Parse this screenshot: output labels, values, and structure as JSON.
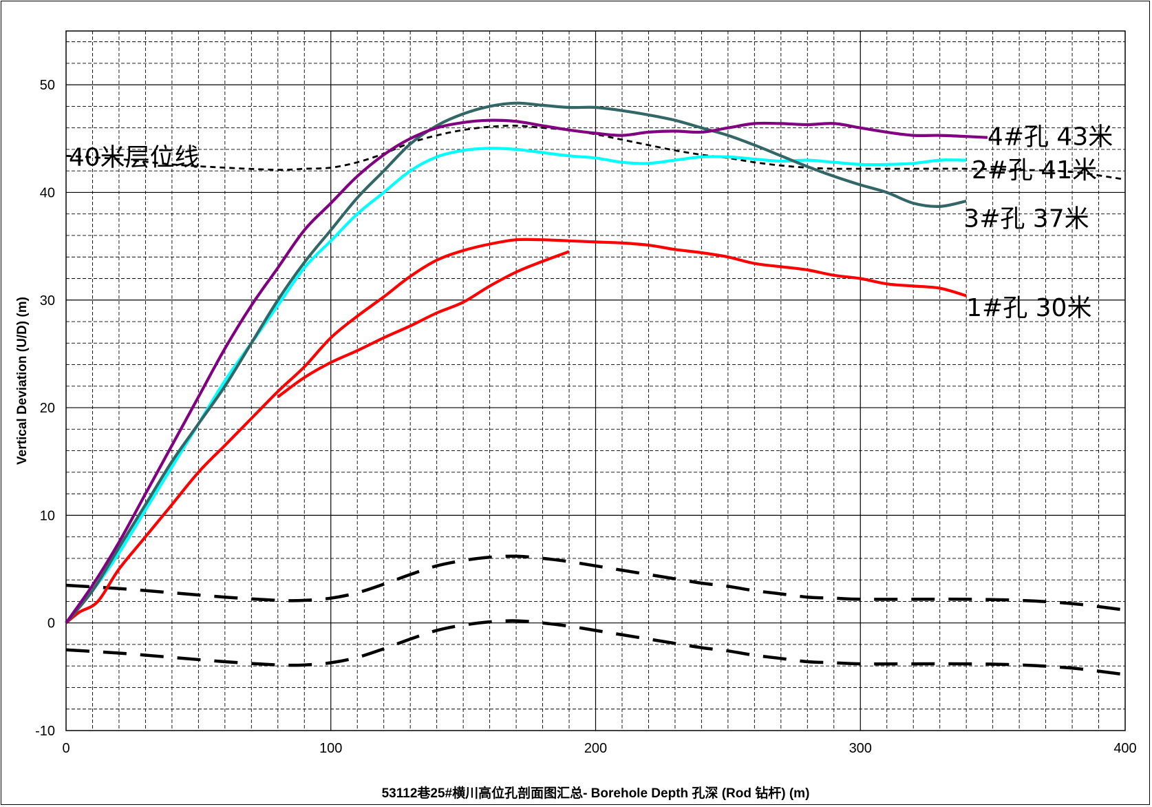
{
  "chart_data": {
    "type": "line",
    "title": "",
    "xlabel": "53112巷25#横川高位孔剖面图汇总- Borehole Depth 孔深 (Rod 钻杆) (m)",
    "ylabel": "Vertical Deviation (U/D) (m)",
    "xlim": [
      0,
      400
    ],
    "ylim": [
      -10,
      55
    ],
    "x_ticks": [
      "0",
      "100",
      "200",
      "300",
      "400"
    ],
    "y_ticks": [
      "-10",
      "0",
      "10",
      "20",
      "30",
      "40",
      "50"
    ],
    "grid": true,
    "legend": "none",
    "annotations": [
      {
        "text": "40米层位线",
        "x": 1,
        "y": 43.4
      },
      {
        "text": "4#孔  43米",
        "x": 348,
        "y": 45.3
      },
      {
        "text": "2#孔  41米",
        "x": 342,
        "y": 42.2
      },
      {
        "text": "3#孔  37米",
        "x": 339,
        "y": 37.7
      },
      {
        "text": "1#孔  30米",
        "x": 340,
        "y": 29.4
      }
    ],
    "series": [
      {
        "key": "hole4",
        "color": "#800080",
        "style": "solid",
        "points": [
          [
            0,
            0
          ],
          [
            10,
            3.5
          ],
          [
            20,
            7.5
          ],
          [
            30,
            12
          ],
          [
            40,
            16.5
          ],
          [
            50,
            21
          ],
          [
            60,
            25.5
          ],
          [
            70,
            29.5
          ],
          [
            80,
            33
          ],
          [
            90,
            36.5
          ],
          [
            100,
            39
          ],
          [
            110,
            41.5
          ],
          [
            120,
            43.5
          ],
          [
            130,
            45
          ],
          [
            140,
            46
          ],
          [
            150,
            46.5
          ],
          [
            160,
            46.7
          ],
          [
            170,
            46.6
          ],
          [
            180,
            46.2
          ],
          [
            190,
            45.8
          ],
          [
            200,
            45.5
          ],
          [
            210,
            45.3
          ],
          [
            220,
            45.6
          ],
          [
            230,
            45.7
          ],
          [
            240,
            45.6
          ],
          [
            250,
            46
          ],
          [
            260,
            46.4
          ],
          [
            270,
            46.4
          ],
          [
            280,
            46.3
          ],
          [
            290,
            46.4
          ],
          [
            300,
            46
          ],
          [
            310,
            45.6
          ],
          [
            320,
            45.3
          ],
          [
            330,
            45.3
          ],
          [
            340,
            45.2
          ],
          [
            348,
            45.1
          ]
        ]
      },
      {
        "key": "hole2",
        "color": "#00FFFF",
        "style": "solid",
        "points": [
          [
            0,
            0
          ],
          [
            10,
            3
          ],
          [
            20,
            6.5
          ],
          [
            30,
            10.5
          ],
          [
            40,
            14.5
          ],
          [
            50,
            18.5
          ],
          [
            60,
            22.5
          ],
          [
            70,
            26
          ],
          [
            80,
            29.5
          ],
          [
            90,
            33
          ],
          [
            100,
            35.5
          ],
          [
            110,
            38
          ],
          [
            120,
            40
          ],
          [
            130,
            42
          ],
          [
            140,
            43.3
          ],
          [
            150,
            43.9
          ],
          [
            160,
            44.1
          ],
          [
            170,
            44
          ],
          [
            180,
            43.7
          ],
          [
            190,
            43.4
          ],
          [
            200,
            43.2
          ],
          [
            210,
            42.8
          ],
          [
            220,
            42.7
          ],
          [
            230,
            43
          ],
          [
            240,
            43.3
          ],
          [
            250,
            43.3
          ],
          [
            260,
            43.1
          ],
          [
            270,
            42.9
          ],
          [
            280,
            43
          ],
          [
            290,
            42.8
          ],
          [
            300,
            42.6
          ],
          [
            310,
            42.6
          ],
          [
            320,
            42.7
          ],
          [
            330,
            43
          ],
          [
            340,
            43
          ]
        ]
      },
      {
        "key": "hole3",
        "color": "#336666",
        "style": "solid",
        "points": [
          [
            0,
            0
          ],
          [
            10,
            3
          ],
          [
            20,
            7
          ],
          [
            30,
            11
          ],
          [
            40,
            15
          ],
          [
            50,
            18.5
          ],
          [
            60,
            22
          ],
          [
            70,
            26
          ],
          [
            80,
            30
          ],
          [
            90,
            33.5
          ],
          [
            100,
            36.5
          ],
          [
            110,
            39.5
          ],
          [
            120,
            42
          ],
          [
            130,
            44.5
          ],
          [
            140,
            46.2
          ],
          [
            150,
            47.3
          ],
          [
            160,
            48
          ],
          [
            170,
            48.3
          ],
          [
            180,
            48.1
          ],
          [
            190,
            47.9
          ],
          [
            200,
            47.9
          ],
          [
            210,
            47.6
          ],
          [
            220,
            47.2
          ],
          [
            230,
            46.7
          ],
          [
            240,
            46
          ],
          [
            250,
            45.3
          ],
          [
            260,
            44.4
          ],
          [
            270,
            43.4
          ],
          [
            280,
            42.4
          ],
          [
            290,
            41.5
          ],
          [
            300,
            40.7
          ],
          [
            310,
            40
          ],
          [
            320,
            39
          ],
          [
            330,
            38.7
          ],
          [
            340,
            39.2
          ]
        ]
      },
      {
        "key": "hole1",
        "color": "#FF0000",
        "style": "solid",
        "points": [
          [
            0,
            0
          ],
          [
            5,
            1
          ],
          [
            12,
            2
          ],
          [
            20,
            5
          ],
          [
            30,
            8
          ],
          [
            40,
            11
          ],
          [
            50,
            14
          ],
          [
            60,
            16.5
          ],
          [
            70,
            19
          ],
          [
            80,
            21.5
          ],
          [
            90,
            23.8
          ],
          [
            100,
            26.5
          ],
          [
            110,
            28.5
          ],
          [
            120,
            30.3
          ],
          [
            130,
            32.2
          ],
          [
            140,
            33.7
          ],
          [
            150,
            34.6
          ],
          [
            160,
            35.2
          ],
          [
            170,
            35.6
          ],
          [
            180,
            35.6
          ],
          [
            190,
            35.5
          ],
          [
            200,
            35.4
          ],
          [
            210,
            35.3
          ],
          [
            220,
            35.1
          ],
          [
            230,
            34.7
          ],
          [
            240,
            34.4
          ],
          [
            250,
            34
          ],
          [
            260,
            33.4
          ],
          [
            270,
            33.1
          ],
          [
            280,
            32.8
          ],
          [
            290,
            32.3
          ],
          [
            300,
            32
          ],
          [
            310,
            31.5
          ],
          [
            320,
            31.3
          ],
          [
            330,
            31.1
          ],
          [
            340,
            30.4
          ]
        ]
      },
      {
        "key": "hole1-branch",
        "color": "#FF0000",
        "style": "solid",
        "points": [
          [
            80,
            21
          ],
          [
            90,
            22.8
          ],
          [
            100,
            24.2
          ],
          [
            110,
            25.3
          ],
          [
            120,
            26.5
          ],
          [
            130,
            27.6
          ],
          [
            140,
            28.8
          ],
          [
            150,
            29.8
          ],
          [
            160,
            31.3
          ],
          [
            170,
            32.6
          ],
          [
            180,
            33.6
          ],
          [
            190,
            34.5
          ]
        ]
      },
      {
        "key": "layer-40m",
        "color": "#000000",
        "style": "dotted",
        "points": [
          [
            0,
            43.4
          ],
          [
            20,
            43.1
          ],
          [
            40,
            42.6
          ],
          [
            60,
            42.3
          ],
          [
            80,
            42.1
          ],
          [
            90,
            42.2
          ],
          [
            100,
            42.3
          ],
          [
            110,
            42.8
          ],
          [
            120,
            43.6
          ],
          [
            130,
            44.6
          ],
          [
            140,
            45.3
          ],
          [
            150,
            45.8
          ],
          [
            160,
            46.1
          ],
          [
            170,
            46.2
          ],
          [
            180,
            46
          ],
          [
            190,
            45.8
          ],
          [
            200,
            45.4
          ],
          [
            210,
            44.9
          ],
          [
            220,
            44.4
          ],
          [
            230,
            43.9
          ],
          [
            240,
            43.5
          ],
          [
            250,
            43.2
          ],
          [
            260,
            42.8
          ],
          [
            270,
            42.5
          ],
          [
            280,
            42.3
          ],
          [
            290,
            42.2
          ],
          [
            300,
            42.2
          ],
          [
            320,
            42.2
          ],
          [
            340,
            42.2
          ],
          [
            360,
            42.1
          ],
          [
            380,
            41.9
          ],
          [
            400,
            41.2
          ]
        ]
      },
      {
        "key": "roof-line",
        "color": "#000000",
        "style": "dashed",
        "points": [
          [
            0,
            3.5
          ],
          [
            20,
            3.2
          ],
          [
            40,
            2.8
          ],
          [
            60,
            2.4
          ],
          [
            80,
            2.1
          ],
          [
            90,
            2.1
          ],
          [
            100,
            2.3
          ],
          [
            110,
            2.8
          ],
          [
            120,
            3.6
          ],
          [
            130,
            4.5
          ],
          [
            140,
            5.3
          ],
          [
            150,
            5.8
          ],
          [
            160,
            6.1
          ],
          [
            170,
            6.2
          ],
          [
            180,
            6
          ],
          [
            190,
            5.7
          ],
          [
            200,
            5.3
          ],
          [
            210,
            4.9
          ],
          [
            220,
            4.5
          ],
          [
            230,
            4.1
          ],
          [
            240,
            3.7
          ],
          [
            250,
            3.4
          ],
          [
            260,
            3
          ],
          [
            270,
            2.7
          ],
          [
            280,
            2.4
          ],
          [
            290,
            2.3
          ],
          [
            300,
            2.2
          ],
          [
            320,
            2.2
          ],
          [
            340,
            2.2
          ],
          [
            360,
            2.1
          ],
          [
            380,
            1.8
          ],
          [
            400,
            1.2
          ]
        ]
      },
      {
        "key": "floor-line",
        "color": "#000000",
        "style": "dashed",
        "points": [
          [
            0,
            -2.5
          ],
          [
            20,
            -2.8
          ],
          [
            40,
            -3.2
          ],
          [
            60,
            -3.6
          ],
          [
            80,
            -3.9
          ],
          [
            90,
            -3.9
          ],
          [
            100,
            -3.7
          ],
          [
            110,
            -3.2
          ],
          [
            120,
            -2.4
          ],
          [
            130,
            -1.5
          ],
          [
            140,
            -0.7
          ],
          [
            150,
            -0.2
          ],
          [
            160,
            0.1
          ],
          [
            170,
            0.2
          ],
          [
            180,
            0
          ],
          [
            190,
            -0.3
          ],
          [
            200,
            -0.7
          ],
          [
            210,
            -1.1
          ],
          [
            220,
            -1.5
          ],
          [
            230,
            -1.9
          ],
          [
            240,
            -2.3
          ],
          [
            250,
            -2.6
          ],
          [
            260,
            -3
          ],
          [
            270,
            -3.3
          ],
          [
            280,
            -3.6
          ],
          [
            290,
            -3.7
          ],
          [
            300,
            -3.8
          ],
          [
            320,
            -3.8
          ],
          [
            340,
            -3.8
          ],
          [
            360,
            -3.9
          ],
          [
            380,
            -4.2
          ],
          [
            400,
            -4.8
          ]
        ]
      }
    ]
  }
}
